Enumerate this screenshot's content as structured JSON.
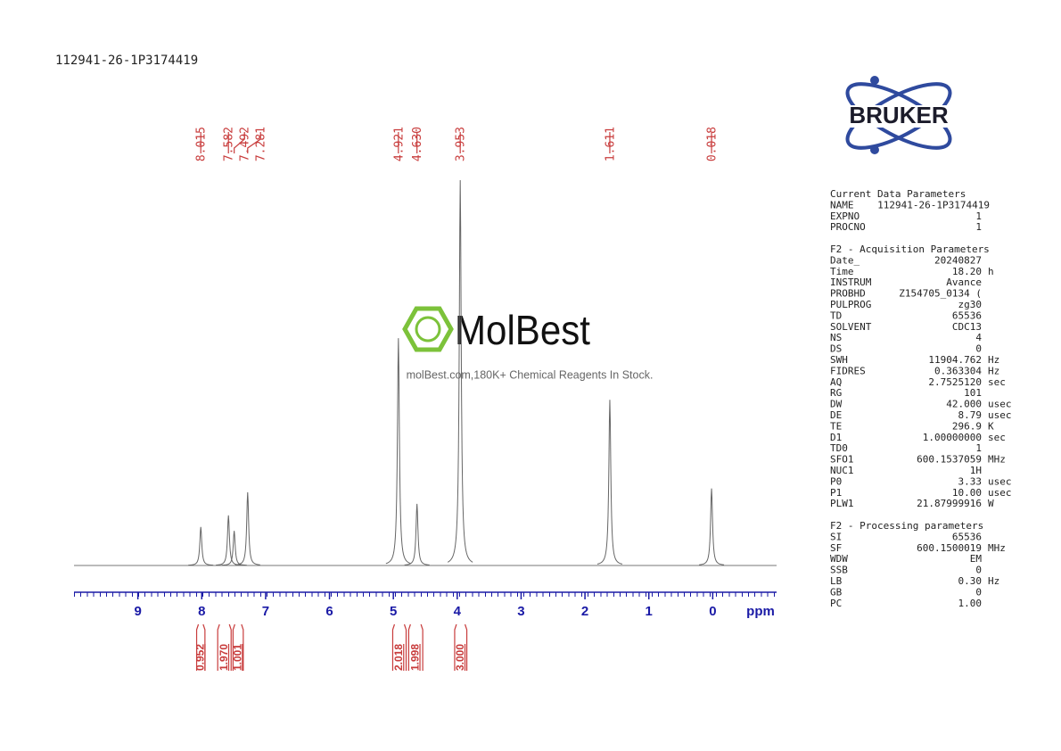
{
  "header": "112941-26-1P3174419",
  "logo": "BRUKER",
  "watermark": {
    "brand": "MolBest",
    "tagline": "molBest.com,180K+ Chemical Reagents In Stock."
  },
  "chart_data": {
    "type": "nmr",
    "x_label": "ppm",
    "xlim": [
      10,
      -1
    ],
    "xticks": [
      9,
      8,
      7,
      6,
      5,
      4,
      3,
      2,
      1,
      0
    ],
    "ylim": [
      0,
      100
    ],
    "x": [
      8.015,
      7.582,
      7.492,
      7.281,
      4.921,
      4.63,
      3.953,
      1.611,
      0.018
    ],
    "peak_labels": [
      "8.015",
      "7.582",
      "7.492",
      "7.281",
      "4.921",
      "4.630",
      "3.953",
      "1.611",
      "0.018"
    ],
    "values": [
      10,
      13,
      9,
      19,
      59,
      16,
      100,
      43,
      20
    ],
    "color": "#666666",
    "label_color": "#c83c3c",
    "integrals": {
      "ranges": [
        [
          8.08,
          7.95
        ],
        [
          7.75,
          7.54
        ],
        [
          7.51,
          7.35
        ],
        [
          5.01,
          4.8
        ],
        [
          4.76,
          4.54
        ],
        [
          4.04,
          3.85
        ]
      ],
      "values": [
        0.952,
        1.97,
        1.001,
        2.018,
        1.998,
        3
      ],
      "value_labels": [
        "0.952",
        "1.970",
        "1.001",
        "2.018",
        "1.998",
        "3.000"
      ]
    }
  },
  "parameters": [
    {
      "title": "Current Data Parameters",
      "rows": [
        [
          "NAME",
          "112941-26-1P3174419"
        ],
        [
          "EXPNO",
          "1"
        ],
        [
          "PROCNO",
          "1"
        ]
      ]
    },
    {
      "title": "F2 - Acquisition Parameters",
      "rows": [
        [
          "Date_",
          "20240827"
        ],
        [
          "Time",
          "18.20",
          "h"
        ],
        [
          "INSTRUM",
          "Avance"
        ],
        [
          "PROBHD",
          "Z154705_0134 ("
        ],
        [
          "PULPROG",
          "zg30"
        ],
        [
          "TD",
          "65536"
        ],
        [
          "SOLVENT",
          "CDC13"
        ],
        [
          "NS",
          "4"
        ],
        [
          "DS",
          "0"
        ],
        [
          "SWH",
          "11904.762",
          "Hz"
        ],
        [
          "FIDRES",
          "0.363304",
          "Hz"
        ],
        [
          "AQ",
          "2.7525120",
          "sec"
        ],
        [
          "RG",
          "101"
        ],
        [
          "DW",
          "42.000",
          "usec"
        ],
        [
          "DE",
          "8.79",
          "usec"
        ],
        [
          "TE",
          "296.9",
          "K"
        ],
        [
          "D1",
          "1.00000000",
          "sec"
        ],
        [
          "TD0",
          "1"
        ],
        [
          "SFO1",
          "600.1537059",
          "MHz"
        ],
        [
          "NUC1",
          "1H"
        ],
        [
          "P0",
          "3.33",
          "usec"
        ],
        [
          "P1",
          "10.00",
          "usec"
        ],
        [
          "PLW1",
          "21.87999916",
          "W"
        ]
      ]
    },
    {
      "title": "F2 - Processing parameters",
      "rows": [
        [
          "SI",
          "65536"
        ],
        [
          "SF",
          "600.1500019",
          "MHz"
        ],
        [
          "WDW",
          "EM"
        ],
        [
          "SSB",
          "0"
        ],
        [
          "LB",
          "0.30",
          "Hz"
        ],
        [
          "GB",
          "0"
        ],
        [
          "PC",
          "1.00"
        ]
      ]
    }
  ]
}
